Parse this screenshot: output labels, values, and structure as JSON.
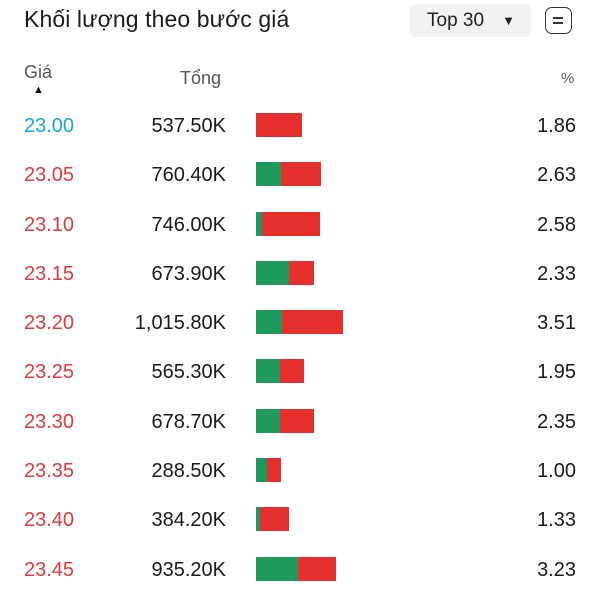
{
  "header": {
    "title": "Khối lượng theo bước giá",
    "top_select": "Top 30",
    "caret": "▼"
  },
  "columns": {
    "price": "Giá",
    "total": "Tổng",
    "pct": "%",
    "sort_arrow": "▲"
  },
  "colors": {
    "reference_price": "#1aa6d6",
    "up_price": "#e03a3a",
    "buy_volume": "#1e9a5c",
    "sell_volume": "#e5302e"
  },
  "rows": [
    {
      "price": "23.00",
      "price_type": "ref",
      "total": "537.50K",
      "pct": "1.86",
      "buy_fraction": 0.0
    },
    {
      "price": "23.05",
      "price_type": "up",
      "total": "760.40K",
      "pct": "2.63",
      "buy_fraction": 0.38
    },
    {
      "price": "23.10",
      "price_type": "up",
      "total": "746.00K",
      "pct": "2.58",
      "buy_fraction": 0.1
    },
    {
      "price": "23.15",
      "price_type": "up",
      "total": "673.90K",
      "pct": "2.33",
      "buy_fraction": 0.57
    },
    {
      "price": "23.20",
      "price_type": "up",
      "total": "1,015.80K",
      "pct": "3.51",
      "buy_fraction": 0.3
    },
    {
      "price": "23.25",
      "price_type": "up",
      "total": "565.30K",
      "pct": "1.95",
      "buy_fraction": 0.5
    },
    {
      "price": "23.30",
      "price_type": "up",
      "total": "678.70K",
      "pct": "2.35",
      "buy_fraction": 0.42
    },
    {
      "price": "23.35",
      "price_type": "up",
      "total": "288.50K",
      "pct": "1.00",
      "buy_fraction": 0.42
    },
    {
      "price": "23.40",
      "price_type": "up",
      "total": "384.20K",
      "pct": "1.33",
      "buy_fraction": 0.13
    },
    {
      "price": "23.45",
      "price_type": "up",
      "total": "935.20K",
      "pct": "3.23",
      "buy_fraction": 0.53
    }
  ]
}
